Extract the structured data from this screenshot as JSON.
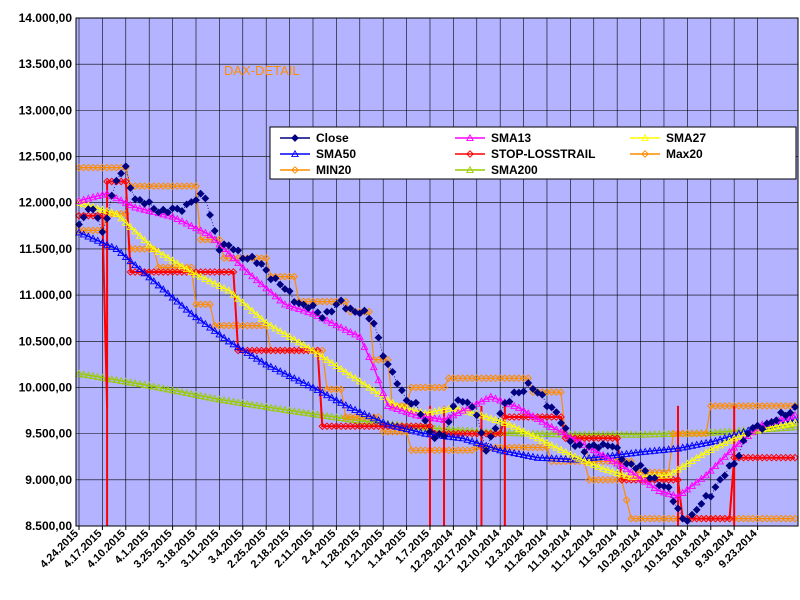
{
  "chart_data": {
    "type": "line",
    "title": "DAX-DETAIL",
    "xlabel": "",
    "ylabel": "",
    "ylim": [
      8500,
      14000
    ],
    "yticks": [
      "8.500,00",
      "9.000,00",
      "9.500,00",
      "10.000,00",
      "10.500,00",
      "11.000,00",
      "11.500,00",
      "12.000,00",
      "12.500,00",
      "13.000,00",
      "13.500,00",
      "14.000,00"
    ],
    "yticks_values": [
      8500,
      9000,
      9500,
      10000,
      10500,
      11000,
      11500,
      12000,
      12500,
      13000,
      13500,
      14000
    ],
    "x_direction": "newest-left",
    "n_points": 154,
    "categories": [
      "4.24.2015",
      "4.17.2015",
      "4.10.2015",
      "4.1.2015",
      "3.25.2015",
      "3.18.2015",
      "3.11.2015",
      "3.4.2015",
      "2.25.2015",
      "2.18.2015",
      "2.11.2015",
      "2.4.2015",
      "1.28.2015",
      "1.21.2015",
      "1.14.2015",
      "1.7.2015",
      "12.29.2014",
      "12.17.2014",
      "12.10.2014",
      "12.3.2014",
      "11.26.2014",
      "11.19.2014",
      "11.12.2014",
      "11.5.2014",
      "10.29.2014",
      "10.22.2014",
      "10.15.2014",
      "10.8.2014",
      "9.30.2014",
      "9.23.2014"
    ],
    "categories_index": [
      0,
      5,
      10,
      15,
      20,
      25,
      30,
      35,
      40,
      45,
      50,
      55,
      60,
      65,
      70,
      75,
      80,
      85,
      90,
      95,
      100,
      105,
      110,
      115,
      120,
      125,
      130,
      135,
      140,
      145
    ],
    "colors": {
      "Close": "#000080",
      "SMA13": "#ff00ff",
      "SMA27": "#ffff00",
      "SMA50": "#0000ff",
      "STOP-LOSSTRAIL": "#ff0000",
      "Max20": "#ff8c00",
      "MIN20": "#ff8c00",
      "SMA200": "#99cc00"
    },
    "series": [
      {
        "name": "Close",
        "marker": "diamond",
        "anchors": [
          [
            0,
            11810
          ],
          [
            3,
            11930
          ],
          [
            5,
            11700
          ],
          [
            8,
            12230
          ],
          [
            10,
            12370
          ],
          [
            12,
            12050
          ],
          [
            15,
            11960
          ],
          [
            18,
            11920
          ],
          [
            21,
            11900
          ],
          [
            24,
            12030
          ],
          [
            27,
            12050
          ],
          [
            30,
            11530
          ],
          [
            33,
            11500
          ],
          [
            36,
            11410
          ],
          [
            40,
            11280
          ],
          [
            44,
            11050
          ],
          [
            48,
            10890
          ],
          [
            52,
            10790
          ],
          [
            56,
            10900
          ],
          [
            60,
            10820
          ],
          [
            63,
            10700
          ],
          [
            66,
            10230
          ],
          [
            69,
            9950
          ],
          [
            72,
            9800
          ],
          [
            75,
            9520
          ],
          [
            78,
            9470
          ],
          [
            81,
            9900
          ],
          [
            84,
            9800
          ],
          [
            87,
            9350
          ],
          [
            90,
            9700
          ],
          [
            93,
            9950
          ],
          [
            96,
            10000
          ],
          [
            99,
            9920
          ],
          [
            102,
            9700
          ],
          [
            105,
            9450
          ],
          [
            108,
            9300
          ],
          [
            111,
            9400
          ],
          [
            114,
            9350
          ],
          [
            117,
            9200
          ],
          [
            120,
            9110
          ],
          [
            123,
            9020
          ],
          [
            126,
            8870
          ],
          [
            129,
            8600
          ],
          [
            131,
            8580
          ],
          [
            134,
            8820
          ],
          [
            137,
            8970
          ],
          [
            140,
            9200
          ],
          [
            143,
            9500
          ],
          [
            146,
            9600
          ],
          [
            149,
            9640
          ],
          [
            153,
            9790
          ]
        ]
      },
      {
        "name": "SMA13",
        "marker": "triangle",
        "anchors": [
          [
            0,
            12020
          ],
          [
            6,
            12100
          ],
          [
            12,
            11950
          ],
          [
            20,
            11850
          ],
          [
            28,
            11650
          ],
          [
            36,
            11250
          ],
          [
            44,
            10900
          ],
          [
            50,
            10800
          ],
          [
            56,
            10650
          ],
          [
            60,
            10550
          ],
          [
            63,
            10220
          ],
          [
            66,
            9800
          ],
          [
            72,
            9700
          ],
          [
            78,
            9650
          ],
          [
            84,
            9800
          ],
          [
            88,
            9900
          ],
          [
            94,
            9780
          ],
          [
            100,
            9600
          ],
          [
            108,
            9380
          ],
          [
            116,
            9150
          ],
          [
            124,
            8880
          ],
          [
            128,
            8820
          ],
          [
            134,
            9050
          ],
          [
            140,
            9350
          ],
          [
            146,
            9600
          ],
          [
            153,
            9700
          ]
        ]
      },
      {
        "name": "SMA27",
        "marker": "triangle",
        "anchors": [
          [
            0,
            12000
          ],
          [
            8,
            11880
          ],
          [
            16,
            11500
          ],
          [
            24,
            11250
          ],
          [
            32,
            11050
          ],
          [
            40,
            10700
          ],
          [
            50,
            10400
          ],
          [
            56,
            10200
          ],
          [
            62,
            10000
          ],
          [
            68,
            9800
          ],
          [
            74,
            9720
          ],
          [
            80,
            9780
          ],
          [
            86,
            9700
          ],
          [
            92,
            9600
          ],
          [
            100,
            9400
          ],
          [
            106,
            9250
          ],
          [
            112,
            9120
          ],
          [
            118,
            9030
          ],
          [
            126,
            9050
          ],
          [
            134,
            9300
          ],
          [
            140,
            9450
          ],
          [
            146,
            9550
          ],
          [
            153,
            9620
          ]
        ]
      },
      {
        "name": "SMA50",
        "marker": "triangle",
        "anchors": [
          [
            0,
            11680
          ],
          [
            8,
            11500
          ],
          [
            16,
            11150
          ],
          [
            24,
            10800
          ],
          [
            32,
            10500
          ],
          [
            40,
            10250
          ],
          [
            50,
            10000
          ],
          [
            58,
            9780
          ],
          [
            66,
            9600
          ],
          [
            74,
            9500
          ],
          [
            82,
            9450
          ],
          [
            90,
            9320
          ],
          [
            98,
            9240
          ],
          [
            106,
            9220
          ],
          [
            112,
            9250
          ],
          [
            120,
            9300
          ],
          [
            128,
            9340
          ],
          [
            136,
            9420
          ],
          [
            144,
            9550
          ],
          [
            153,
            9650
          ]
        ]
      },
      {
        "name": "SMA200",
        "marker": "triangle",
        "anchors": [
          [
            0,
            10150
          ],
          [
            15,
            10020
          ],
          [
            30,
            9870
          ],
          [
            45,
            9750
          ],
          [
            60,
            9640
          ],
          [
            75,
            9560
          ],
          [
            90,
            9510
          ],
          [
            105,
            9490
          ],
          [
            120,
            9490
          ],
          [
            135,
            9510
          ],
          [
            153,
            9570
          ]
        ]
      },
      {
        "name": "STOP-LOSSTRAIL",
        "marker": "diamond",
        "step": true,
        "anchors": [
          [
            0,
            11860
          ],
          [
            5,
            11860
          ],
          [
            6,
            9780
          ],
          [
            6,
            12230
          ],
          [
            10,
            12230
          ],
          [
            11,
            11250
          ],
          [
            33,
            11250
          ],
          [
            34,
            10400
          ],
          [
            51,
            10400
          ],
          [
            52,
            9580
          ],
          [
            75,
            9580
          ],
          [
            76,
            9500
          ],
          [
            90,
            9500
          ],
          [
            91,
            9680
          ],
          [
            103,
            9680
          ],
          [
            104,
            9450
          ],
          [
            115,
            9450
          ],
          [
            116,
            9000
          ],
          [
            128,
            9000
          ],
          [
            129,
            8580
          ],
          [
            139,
            8580
          ],
          [
            140,
            9240
          ],
          [
            153,
            9240
          ]
        ],
        "dips": [
          [
            6,
            8500
          ],
          [
            75,
            8500
          ],
          [
            78,
            8500
          ],
          [
            86,
            8500
          ],
          [
            91,
            8500
          ],
          [
            128,
            8500
          ],
          [
            140,
            8500
          ]
        ]
      },
      {
        "name": "Max20",
        "marker": "diamond",
        "step": true,
        "anchors": [
          [
            0,
            12380
          ],
          [
            10,
            12380
          ],
          [
            11,
            12180
          ],
          [
            25,
            12180
          ],
          [
            26,
            11600
          ],
          [
            30,
            11600
          ],
          [
            31,
            11400
          ],
          [
            40,
            11400
          ],
          [
            41,
            11200
          ],
          [
            46,
            11200
          ],
          [
            47,
            10930
          ],
          [
            57,
            10930
          ],
          [
            58,
            10820
          ],
          [
            62,
            10820
          ],
          [
            63,
            10300
          ],
          [
            66,
            10300
          ],
          [
            67,
            9800
          ],
          [
            70,
            9800
          ],
          [
            71,
            10000
          ],
          [
            78,
            10000
          ],
          [
            79,
            10100
          ],
          [
            96,
            10100
          ],
          [
            97,
            9950
          ],
          [
            103,
            9950
          ],
          [
            104,
            9450
          ],
          [
            108,
            9450
          ],
          [
            109,
            9200
          ],
          [
            118,
            9200
          ],
          [
            119,
            9080
          ],
          [
            126,
            9080
          ],
          [
            127,
            9500
          ],
          [
            134,
            9500
          ],
          [
            135,
            9800
          ],
          [
            153,
            9800
          ]
        ]
      },
      {
        "name": "MIN20",
        "marker": "diamond",
        "step": true,
        "anchors": [
          [
            0,
            11700
          ],
          [
            5,
            11700
          ],
          [
            6,
            11880
          ],
          [
            10,
            11880
          ],
          [
            11,
            11500
          ],
          [
            16,
            11500
          ],
          [
            17,
            11300
          ],
          [
            24,
            11300
          ],
          [
            25,
            10900
          ],
          [
            28,
            10900
          ],
          [
            29,
            10670
          ],
          [
            40,
            10670
          ],
          [
            41,
            10400
          ],
          [
            52,
            10400
          ],
          [
            53,
            9980
          ],
          [
            56,
            9980
          ],
          [
            57,
            9680
          ],
          [
            64,
            9680
          ],
          [
            65,
            9520
          ],
          [
            70,
            9520
          ],
          [
            71,
            9320
          ],
          [
            84,
            9320
          ],
          [
            85,
            9350
          ],
          [
            100,
            9350
          ],
          [
            101,
            9200
          ],
          [
            108,
            9200
          ],
          [
            109,
            9000
          ],
          [
            116,
            9000
          ],
          [
            117,
            8780
          ],
          [
            118,
            8580
          ],
          [
            137,
            8580
          ],
          [
            138,
            8580
          ],
          [
            153,
            8580
          ]
        ]
      }
    ],
    "legend": {
      "placement": "upper-right",
      "entries": [
        "Close",
        "SMA13",
        "SMA27",
        "SMA50",
        "STOP-LOSSTRAIL",
        "Max20",
        "MIN20",
        "SMA200"
      ]
    },
    "grid": true,
    "plot_background": "#b3b3ff"
  }
}
